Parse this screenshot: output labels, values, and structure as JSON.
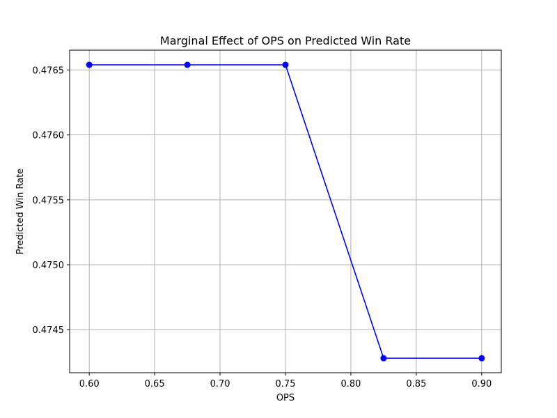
{
  "chart_data": {
    "type": "line",
    "title": "Marginal Effect of OPS on Predicted Win Rate",
    "xlabel": "OPS",
    "ylabel": "Predicted Win Rate",
    "x": [
      0.6,
      0.675,
      0.75,
      0.825,
      0.9
    ],
    "series": [
      {
        "values": [
          0.47654,
          0.47654,
          0.47654,
          0.47428,
          0.47428
        ],
        "color": "#0000ff",
        "marker": "circle"
      }
    ],
    "xlim": [
      0.585,
      0.915
    ],
    "ylim": [
      0.474168,
      0.476653
    ],
    "xticks": [
      0.6,
      0.65,
      0.7,
      0.75,
      0.8,
      0.85,
      0.9
    ],
    "xtick_labels": [
      "0.60",
      "0.65",
      "0.70",
      "0.75",
      "0.80",
      "0.85",
      "0.90"
    ],
    "yticks": [
      0.4745,
      0.475,
      0.4755,
      0.476,
      0.4765
    ],
    "ytick_labels": [
      "0.4745",
      "0.4750",
      "0.4755",
      "0.4760",
      "0.4765"
    ],
    "grid": true,
    "legend": "none"
  }
}
